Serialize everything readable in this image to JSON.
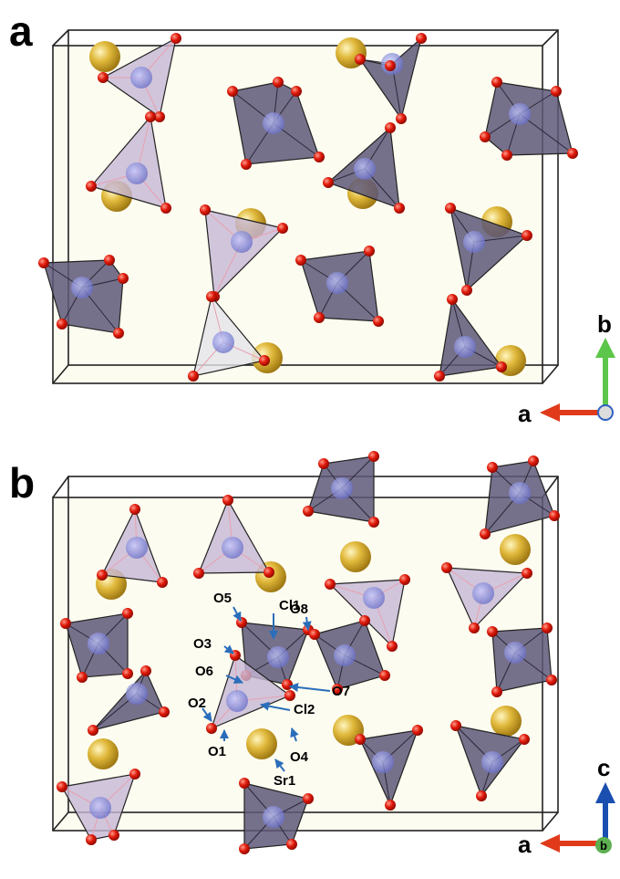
{
  "panels": [
    {
      "label": "a",
      "axes": {
        "vertical": "b",
        "horizontal": "a"
      }
    },
    {
      "label": "b",
      "axes": {
        "vertical": "c",
        "horizontal": "a",
        "view": "b"
      },
      "atom_labels": [
        "O5",
        "Cl1",
        "O8",
        "O3",
        "O6",
        "O7",
        "O2",
        "Cl2",
        "O1",
        "O4",
        "Sr1"
      ]
    }
  ]
}
